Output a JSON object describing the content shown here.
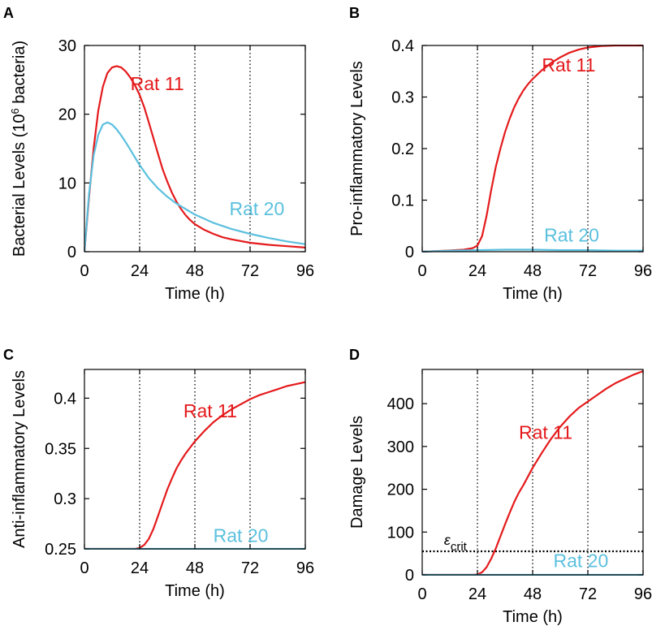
{
  "chart_data": [
    {
      "panel": "A",
      "type": "line",
      "xlabel": "Time (h)",
      "ylabel_parts": [
        "Bacterial Levels (10",
        "6",
        " bacteria)"
      ],
      "xlim": [
        0,
        96
      ],
      "ylim": [
        0,
        30
      ],
      "xticks": [
        0,
        24,
        48,
        72,
        96
      ],
      "yticks": [
        0,
        10,
        20,
        30
      ],
      "ytick_labels": [
        "0",
        "10",
        "20",
        "30"
      ],
      "vlines": [
        24,
        48,
        72
      ],
      "series": [
        {
          "name": "Rat 11",
          "color": "#e41a1c",
          "x": [
            0,
            2,
            4,
            6,
            8,
            10,
            12,
            14,
            16,
            18,
            20,
            22,
            24,
            26,
            28,
            30,
            32,
            34,
            36,
            38,
            40,
            42,
            44,
            46,
            48,
            52,
            56,
            60,
            64,
            72,
            80,
            88,
            96
          ],
          "y": [
            0,
            8,
            15,
            20.5,
            24,
            26,
            26.8,
            27,
            26.8,
            26.2,
            25.3,
            24.2,
            22.8,
            21,
            18.8,
            16.5,
            14.2,
            12,
            10.2,
            8.6,
            7.3,
            6.2,
            5.3,
            4.6,
            4.0,
            3.2,
            2.6,
            2.1,
            1.8,
            1.3,
            1.0,
            0.8,
            0.6
          ]
        },
        {
          "name": "Rat 20",
          "color": "#5bc0de",
          "x": [
            0,
            2,
            4,
            6,
            8,
            10,
            12,
            14,
            16,
            18,
            20,
            22,
            24,
            28,
            32,
            36,
            40,
            44,
            48,
            56,
            64,
            72,
            80,
            88,
            96
          ],
          "y": [
            0,
            8.5,
            14,
            17,
            18.5,
            18.8,
            18.5,
            17.8,
            16.9,
            15.9,
            14.8,
            13.7,
            12.6,
            10.7,
            9.2,
            8.0,
            7.0,
            6.2,
            5.4,
            4.2,
            3.3,
            2.6,
            2.0,
            1.5,
            1.1
          ]
        }
      ],
      "labels": [
        {
          "text": "Rat 11",
          "color": "#e41a1c",
          "x": 20,
          "y": 23.5
        },
        {
          "text": "Rat 20",
          "color": "#5bc0de",
          "x": 63,
          "y": 5.3
        }
      ]
    },
    {
      "panel": "B",
      "type": "line",
      "xlabel": "Time (h)",
      "ylabel": "Pro-inflammatory Levels",
      "xlim": [
        0,
        96
      ],
      "ylim": [
        0,
        0.4
      ],
      "xticks": [
        0,
        24,
        48,
        72,
        96
      ],
      "yticks": [
        0,
        0.1,
        0.2,
        0.3,
        0.4
      ],
      "ytick_labels": [
        "0",
        "0.1",
        "0.2",
        "0.3",
        "0.4"
      ],
      "vlines": [
        24,
        48,
        72
      ],
      "series": [
        {
          "name": "Rat 11",
          "color": "#e41a1c",
          "x": [
            0,
            10,
            18,
            22,
            24,
            26,
            28,
            30,
            32,
            34,
            36,
            38,
            40,
            42,
            44,
            46,
            48,
            52,
            56,
            60,
            64,
            68,
            72,
            78,
            84,
            90,
            96
          ],
          "y": [
            0,
            0.002,
            0.004,
            0.007,
            0.012,
            0.03,
            0.07,
            0.12,
            0.165,
            0.2,
            0.232,
            0.258,
            0.28,
            0.298,
            0.313,
            0.325,
            0.335,
            0.352,
            0.366,
            0.377,
            0.386,
            0.392,
            0.396,
            0.399,
            0.4,
            0.4,
            0.4
          ]
        },
        {
          "name": "Rat 20",
          "color": "#5bc0de",
          "x": [
            0,
            12,
            24,
            36,
            48,
            60,
            72,
            84,
            96
          ],
          "y": [
            0,
            0.002,
            0.003,
            0.004,
            0.004,
            0.003,
            0.003,
            0.002,
            0.002
          ]
        }
      ],
      "labels": [
        {
          "text": "Rat 11",
          "color": "#e41a1c",
          "x": 52,
          "y": 0.35
        },
        {
          "text": "Rat 20",
          "color": "#5bc0de",
          "x": 53,
          "y": 0.02
        }
      ]
    },
    {
      "panel": "C",
      "type": "line",
      "xlabel": "Time (h)",
      "ylabel": "Anti-inflammatory Levels",
      "xlim": [
        0,
        96
      ],
      "ylim": [
        0.25,
        0.4286
      ],
      "xticks": [
        0,
        24,
        48,
        72,
        96
      ],
      "yticks": [
        0.25,
        0.3,
        0.35,
        0.4
      ],
      "ytick_labels": [
        "0.25",
        "0.3",
        "0.35",
        "0.4"
      ],
      "vlines": [
        24,
        48,
        72
      ],
      "series": [
        {
          "name": "Rat 11",
          "color": "#e41a1c",
          "x": [
            0,
            22,
            24,
            26,
            28,
            30,
            32,
            34,
            36,
            38,
            40,
            42,
            44,
            46,
            48,
            52,
            56,
            60,
            64,
            68,
            72,
            76,
            80,
            84,
            88,
            92,
            96
          ],
          "y": [
            0.25,
            0.25,
            0.251,
            0.254,
            0.26,
            0.27,
            0.283,
            0.296,
            0.309,
            0.32,
            0.33,
            0.338,
            0.345,
            0.351,
            0.357,
            0.367,
            0.376,
            0.383,
            0.389,
            0.394,
            0.399,
            0.403,
            0.406,
            0.409,
            0.412,
            0.414,
            0.416
          ]
        },
        {
          "name": "Rat 20",
          "color": "#5bc0de",
          "x": [
            0,
            96
          ],
          "y": [
            0.25,
            0.25
          ]
        }
      ],
      "labels": [
        {
          "text": "Rat 11",
          "color": "#e41a1c",
          "x": 43,
          "y": 0.381
        },
        {
          "text": "Rat 20",
          "color": "#5bc0de",
          "x": 56,
          "y": 0.257
        }
      ]
    },
    {
      "panel": "D",
      "type": "line",
      "xlabel": "Time (h)",
      "ylabel": "Damage Levels",
      "xlim": [
        0,
        96
      ],
      "ylim": [
        0,
        480
      ],
      "xticks": [
        0,
        24,
        48,
        72,
        96
      ],
      "yticks": [
        0,
        100,
        200,
        300,
        400
      ],
      "ytick_labels": [
        "0",
        "100",
        "200",
        "300",
        "400"
      ],
      "vlines": [
        24,
        48,
        72
      ],
      "hlines": [
        {
          "y": 55,
          "style": "dotted"
        }
      ],
      "threshold_label": {
        "symbol": "ε",
        "subscript": "crit",
        "x": 9.5,
        "y": 70
      },
      "series": [
        {
          "name": "Rat 11",
          "color": "#e41a1c",
          "x": [
            0,
            22,
            24,
            26,
            28,
            30,
            32,
            34,
            36,
            38,
            40,
            42,
            44,
            46,
            48,
            52,
            56,
            60,
            64,
            68,
            72,
            76,
            80,
            84,
            88,
            92,
            96
          ],
          "y": [
            0,
            0,
            1,
            6,
            18,
            38,
            62,
            90,
            118,
            145,
            170,
            192,
            210,
            230,
            250,
            285,
            318,
            346,
            370,
            390,
            405,
            420,
            435,
            448,
            458,
            468,
            476
          ]
        },
        {
          "name": "Rat 20",
          "color": "#5bc0de",
          "x": [
            0,
            96
          ],
          "y": [
            0,
            0
          ]
        }
      ],
      "labels": [
        {
          "text": "Rat 11",
          "color": "#e41a1c",
          "x": 42,
          "y": 318
        },
        {
          "text": "Rat 20",
          "color": "#5bc0de",
          "x": 57,
          "y": 18
        }
      ]
    }
  ]
}
